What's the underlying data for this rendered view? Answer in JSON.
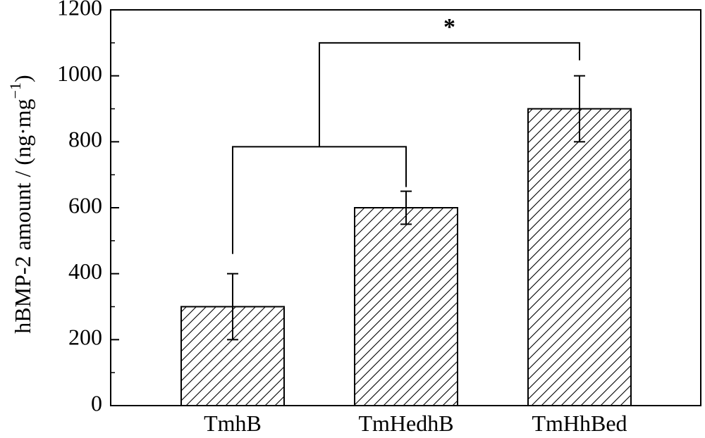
{
  "chart_data": {
    "type": "bar",
    "title": "",
    "xlabel": "",
    "ylabel": "hBMP-2 amount / (ng·mg",
    "ylabel_superscript": "−1",
    "ylabel_suffix": ")",
    "categories": [
      "TmhB",
      "TmHedhB",
      "TmHhBed"
    ],
    "values": [
      300,
      600,
      900
    ],
    "errors": [
      100,
      50,
      100
    ],
    "ylim": [
      0,
      1200
    ],
    "yticks": [
      0,
      200,
      400,
      600,
      800,
      1000,
      1200
    ],
    "ytick_labels": [
      "0",
      "200",
      "400",
      "600",
      "800",
      "1000",
      "1200"
    ],
    "minor_ytick_step": 100,
    "bar_fill": "hatched",
    "bar_color": "#000000",
    "grid": false,
    "significance": {
      "label": "*",
      "group_a": [
        0,
        1
      ],
      "group_b": [
        2
      ]
    }
  }
}
